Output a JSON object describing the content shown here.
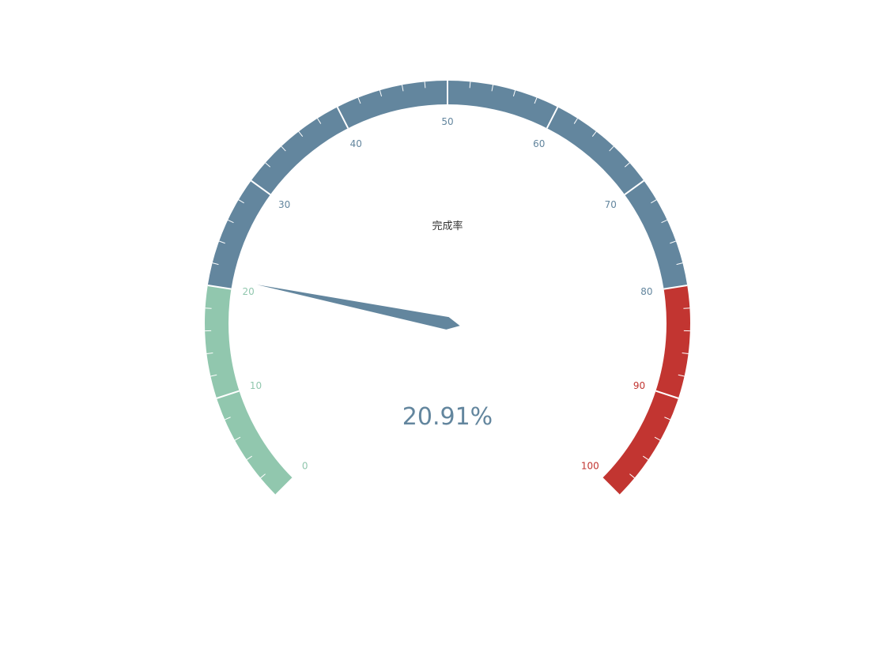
{
  "chart_data": {
    "type": "gauge",
    "series": [
      {
        "name": "完成率",
        "value": 20.91
      }
    ],
    "value_display": "20.91%",
    "min": 0,
    "max": 100,
    "start_angle_deg": 225,
    "end_angle_deg": -45,
    "major_tick_labels": [
      "0",
      "10",
      "20",
      "30",
      "40",
      "50",
      "60",
      "70",
      "80",
      "90",
      "100"
    ],
    "split_number": 10,
    "minor_ticks_per_split": 5,
    "bands": [
      {
        "to": 0.2,
        "color": "#91c7ae"
      },
      {
        "to": 0.8,
        "color": "#63869e"
      },
      {
        "to": 1.0,
        "color": "#c23531"
      }
    ],
    "pointer_color": "#63869e",
    "value_color": "#63869e"
  }
}
